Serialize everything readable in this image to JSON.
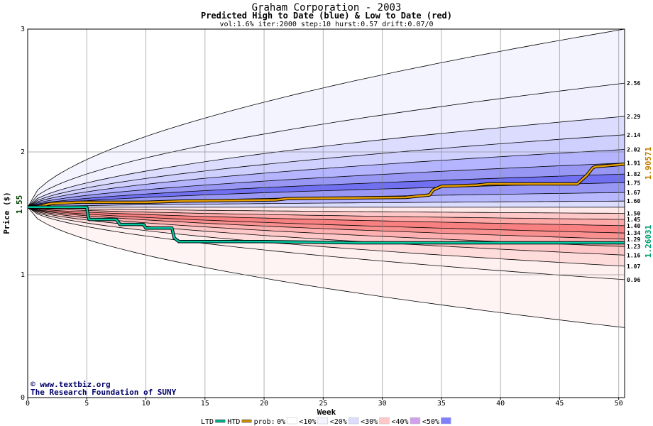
{
  "chart_data": {
    "type": "area",
    "title": "Graham Corporation - 2003",
    "subtitle": "Predicted High to Date (blue) &  Low to Date (red)",
    "params": "vol:1.6% iter:2000 step:10 hurst:0.57 drift:0.07/0",
    "xlabel": "Week",
    "ylabel": "Price ($)",
    "xlim": [
      0,
      50.5
    ],
    "ylim": [
      0,
      3
    ],
    "x_ticks": [
      0,
      5,
      10,
      15,
      20,
      25,
      30,
      35,
      40,
      45,
      50
    ],
    "y_ticks": [
      0,
      1,
      2,
      3
    ],
    "grid": true,
    "start_price": 1.55,
    "start_label": "1.55",
    "upper_bands": [
      {
        "end": 2.56,
        "label": "2.56",
        "fill": "#f0f0ff"
      },
      {
        "end": 2.29,
        "label": "2.29",
        "fill": "#dcdcff"
      },
      {
        "end": 2.14,
        "label": "2.14",
        "fill": "#d0d0ff"
      },
      {
        "end": 2.02,
        "label": "2.02",
        "fill": "#b4b4ff"
      },
      {
        "end": 1.91,
        "label": "1.91",
        "fill": "#9898f4"
      },
      {
        "end": 1.82,
        "label": "1.82",
        "fill": "#7070f0"
      },
      {
        "end": 1.75,
        "label": "1.75",
        "fill": "#9898f4"
      },
      {
        "end": 1.67,
        "label": "1.67",
        "fill": "#b8b8ff"
      },
      {
        "end": 1.6,
        "label": "1.60",
        "fill": "#dcdcff"
      }
    ],
    "lower_bands": [
      {
        "end": 0.96,
        "label": "0.96",
        "fill": "#fff0f0"
      },
      {
        "end": 1.07,
        "label": "1.07",
        "fill": "#ffdcdc"
      },
      {
        "end": 1.16,
        "label": "1.16",
        "fill": "#ffc8c8"
      },
      {
        "end": 1.23,
        "label": "1.23",
        "fill": "#ffb0b0"
      },
      {
        "end": 1.29,
        "label": "1.29",
        "fill": "#f89090"
      },
      {
        "end": 1.34,
        "label": "1.34",
        "fill": "#f88080"
      },
      {
        "end": 1.4,
        "label": "1.40",
        "fill": "#ffa8a8"
      },
      {
        "end": 1.45,
        "label": "1.45",
        "fill": "#ffc8c8"
      },
      {
        "end": 1.5,
        "label": "1.50",
        "fill": "#ffe8e8"
      }
    ],
    "outer_upper_end": 3.0,
    "outer_lower_end": 0.57,
    "htd_series": {
      "name": "HTD",
      "end_label": "1.90571",
      "color": "#e8a000",
      "points": [
        [
          0,
          1.55
        ],
        [
          1.2,
          1.56
        ],
        [
          1.5,
          1.57
        ],
        [
          2,
          1.58
        ],
        [
          4.2,
          1.59
        ],
        [
          10,
          1.59
        ],
        [
          13,
          1.6
        ],
        [
          21,
          1.61
        ],
        [
          22,
          1.62
        ],
        [
          32,
          1.63
        ],
        [
          33,
          1.64
        ],
        [
          34,
          1.65
        ],
        [
          34.3,
          1.69
        ],
        [
          35,
          1.72
        ],
        [
          38,
          1.73
        ],
        [
          39,
          1.74
        ],
        [
          46.5,
          1.74
        ],
        [
          47.3,
          1.81
        ],
        [
          47.8,
          1.87
        ],
        [
          48,
          1.88
        ],
        [
          50.5,
          1.9
        ]
      ]
    },
    "ltd_series": {
      "name": "LTD",
      "end_label": "1.26031",
      "color": "#00c8a0",
      "points": [
        [
          0,
          1.55
        ],
        [
          5,
          1.55
        ],
        [
          5.1,
          1.48
        ],
        [
          5.2,
          1.45
        ],
        [
          7.5,
          1.45
        ],
        [
          7.8,
          1.41
        ],
        [
          9.8,
          1.41
        ],
        [
          10,
          1.38
        ],
        [
          12.2,
          1.38
        ],
        [
          12.4,
          1.3
        ],
        [
          12.8,
          1.27
        ],
        [
          20,
          1.27
        ],
        [
          28,
          1.26
        ],
        [
          50.5,
          1.26
        ]
      ]
    },
    "legend": {
      "ltd": "LTD",
      "htd": "HTD",
      "prob": "prob:",
      "entries": [
        {
          "label": "0%",
          "color": "#ffffff"
        },
        {
          "label": "<10%",
          "color": "#f4f4ff"
        },
        {
          "label": "<20%",
          "color": "#dcdcff"
        },
        {
          "label": "<30%",
          "color": "#ffc8c8"
        },
        {
          "label": "<40%",
          "color": "#d0a0e8"
        },
        {
          "label": "<50%",
          "color": "#8080ff"
        }
      ]
    },
    "credits": {
      "site": "www.textbiz.org",
      "org": "The Research Foundation of SUNY"
    }
  }
}
